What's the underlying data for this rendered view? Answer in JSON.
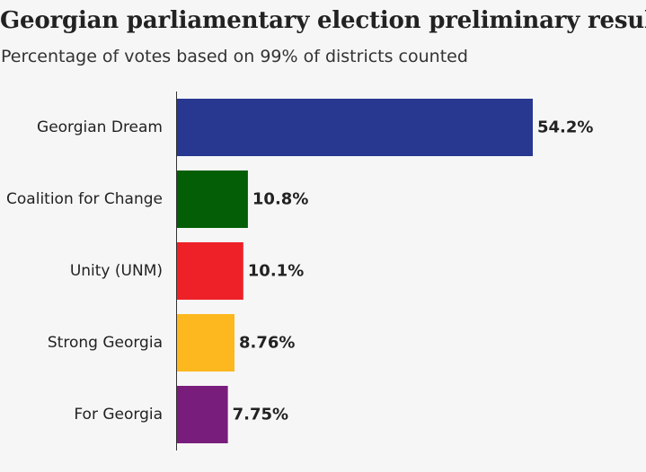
{
  "chart_data": {
    "type": "bar",
    "orientation": "horizontal",
    "title": "Georgian parliamentary election preliminary results",
    "subtitle": "Percentage of votes based on 99% of districts counted",
    "categories": [
      "Georgian Dream",
      "Coalition for Change",
      "Unity (UNM)",
      "Strong Georgia",
      "For Georgia"
    ],
    "values": [
      54.2,
      10.8,
      10.1,
      8.76,
      7.75
    ],
    "value_labels": [
      "54.2%",
      "10.8%",
      "10.1%",
      "8.76%",
      "7.75%"
    ],
    "colors": [
      "#283891",
      "#035e06",
      "#ee2128",
      "#fdb81f",
      "#791d7c"
    ],
    "xlim": [
      0,
      54.2
    ],
    "xlabel": "",
    "ylabel": "",
    "grid": false
  }
}
